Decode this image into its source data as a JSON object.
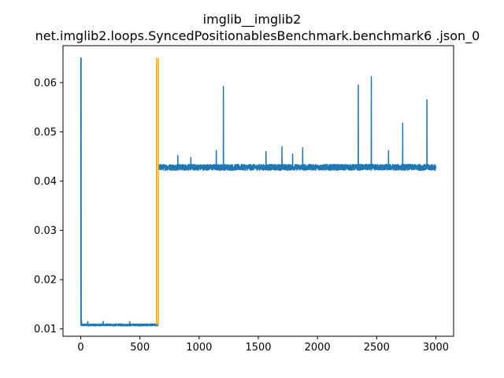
{
  "chart_data": {
    "type": "line",
    "title": "imglib__imglib2",
    "subtitle": "net.imglib2.loops.SyncedPositionablesBenchmark.benchmark6 .json_0",
    "xlabel": "",
    "ylabel": "",
    "xlim": [
      -150,
      3150
    ],
    "ylim": [
      0.0085,
      0.0675
    ],
    "xticks": [
      0,
      500,
      1000,
      1500,
      2000,
      2500,
      3000
    ],
    "yticks": [
      0.01,
      0.02,
      0.03,
      0.04,
      0.05,
      0.06
    ],
    "xtick_labels": [
      "0",
      "500",
      "1000",
      "1500",
      "2000",
      "2500",
      "3000"
    ],
    "ytick_labels": [
      "0.01",
      "0.02",
      "0.03",
      "0.04",
      "0.05",
      "0.06"
    ],
    "grid": false,
    "series": [
      {
        "color": "#1f77b4",
        "segments": [
          {
            "x_range": [
              0,
              650
            ],
            "first_value": 0.065,
            "baseline": 0.0108,
            "noise": 0.0002,
            "spikes": [
              [
                3,
                0.065
              ],
              [
                6,
                0.0118
              ],
              [
                60,
                0.0115
              ],
              [
                190,
                0.0115
              ],
              [
                415,
                0.0115
              ]
            ]
          },
          {
            "x_range": [
              660,
              3000
            ],
            "baseline": 0.0428,
            "noise": 0.0006,
            "spikes": [
              [
                820,
                0.0452
              ],
              [
                930,
                0.0448
              ],
              [
                1145,
                0.0462
              ],
              [
                1205,
                0.0592
              ],
              [
                1565,
                0.046
              ],
              [
                1700,
                0.047
              ],
              [
                1790,
                0.0455
              ],
              [
                1875,
                0.0468
              ],
              [
                2345,
                0.0595
              ],
              [
                2455,
                0.0612
              ],
              [
                2600,
                0.0462
              ],
              [
                2720,
                0.0518
              ],
              [
                2925,
                0.0565
              ]
            ]
          }
        ]
      }
    ],
    "markers": [
      {
        "color": "#ffa500",
        "x": [
          640,
          655
        ],
        "y_range": [
          0.0108,
          0.065
        ]
      }
    ]
  }
}
